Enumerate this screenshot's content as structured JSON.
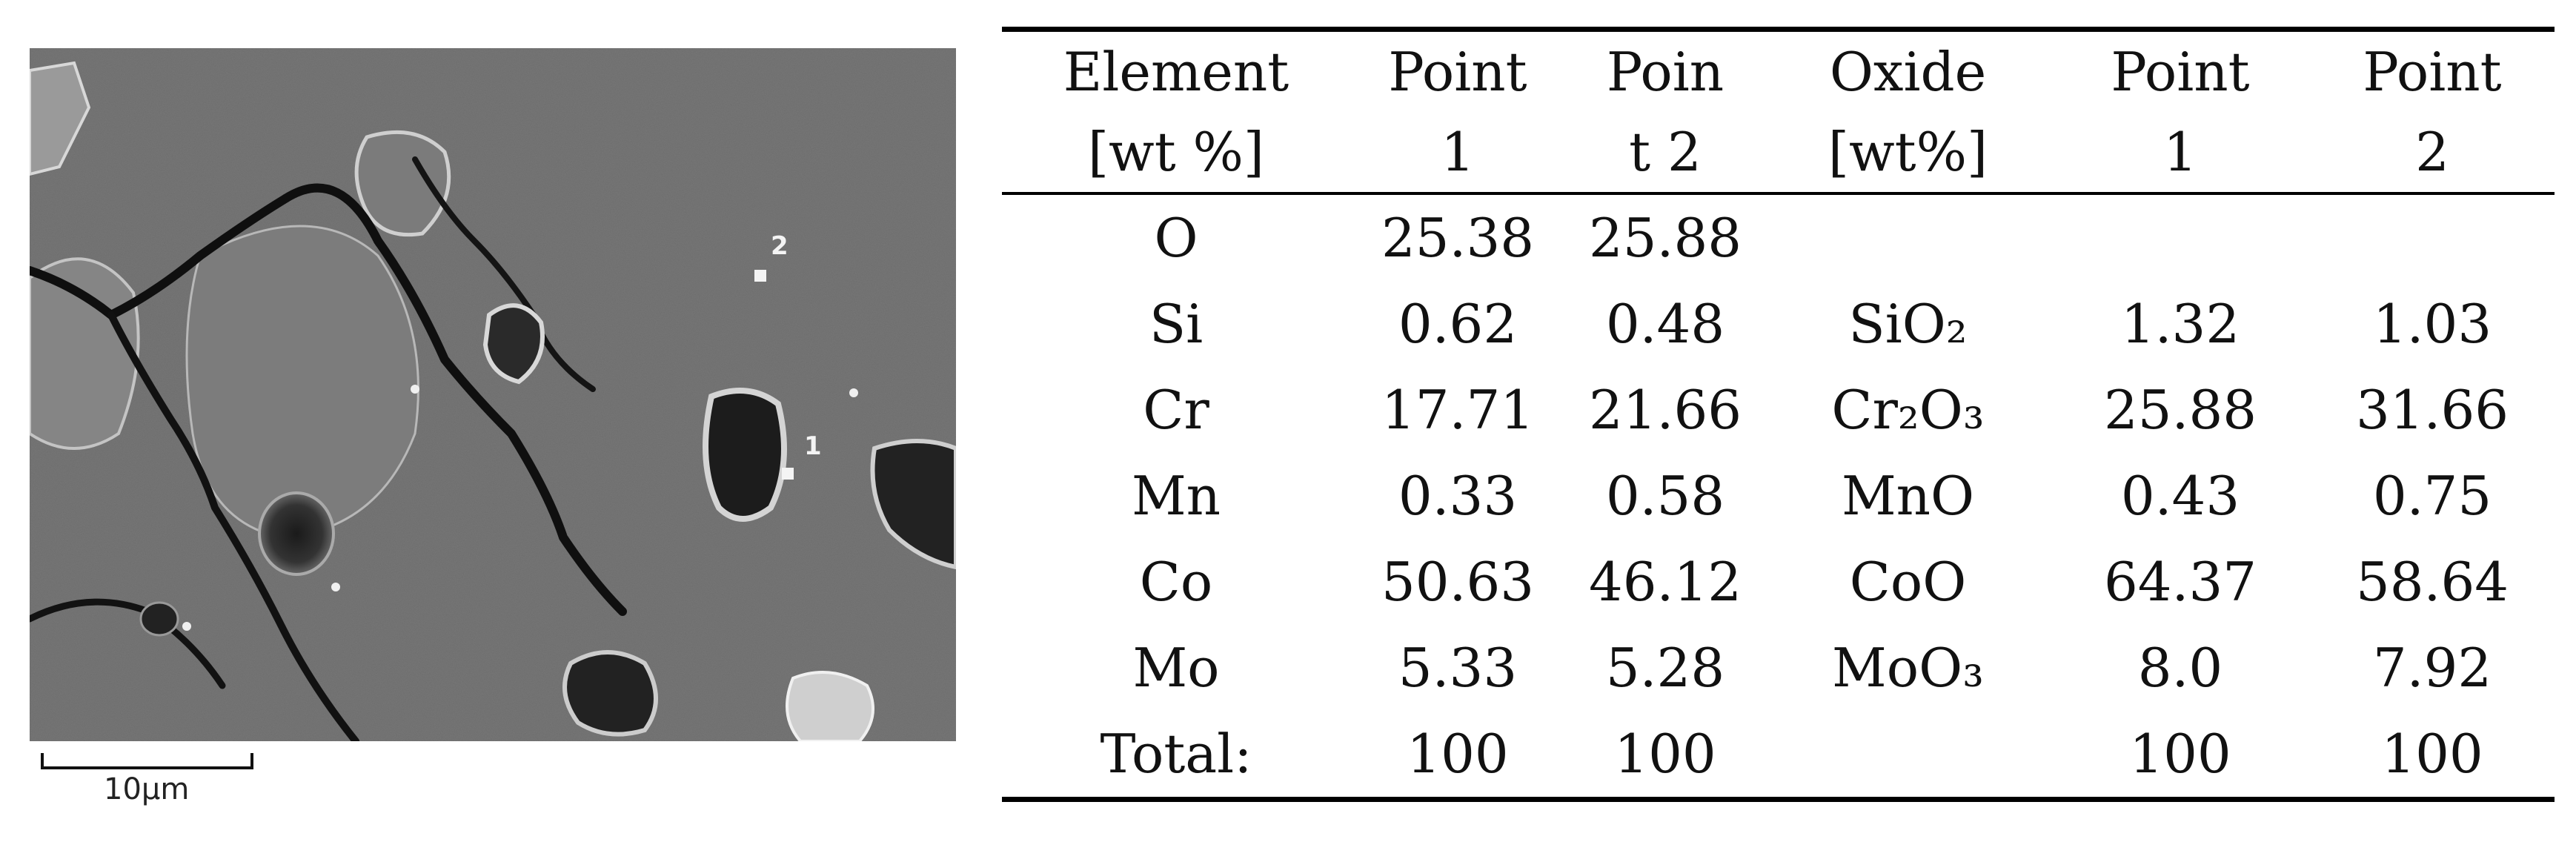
{
  "micrograph": {
    "points": [
      {
        "label": "1"
      },
      {
        "label": "2"
      }
    ],
    "scale_bar_label": "10µm"
  },
  "table": {
    "headers_line1": [
      "Element",
      "Point",
      "Poin",
      "Oxide",
      "Point",
      "Point"
    ],
    "headers_line2": [
      "[wt %]",
      "1",
      "t 2",
      "[wt%]",
      "1",
      "2"
    ],
    "rows": [
      [
        "O",
        "25.38",
        "25.88",
        "",
        "",
        ""
      ],
      [
        "Si",
        "0.62",
        "0.48",
        "SiO₂",
        "1.32",
        "1.03"
      ],
      [
        "Cr",
        "17.71",
        "21.66",
        "Cr₂O₃",
        "25.88",
        "31.66"
      ],
      [
        "Mn",
        "0.33",
        "0.58",
        "MnO",
        "0.43",
        "0.75"
      ],
      [
        "Co",
        "50.63",
        "46.12",
        "CoO",
        "64.37",
        "58.64"
      ],
      [
        "Mo",
        "5.33",
        "5.28",
        "MoO₃",
        "8.0",
        "7.92"
      ],
      [
        "Total:",
        "100",
        "100",
        "",
        "100",
        "100"
      ]
    ]
  }
}
